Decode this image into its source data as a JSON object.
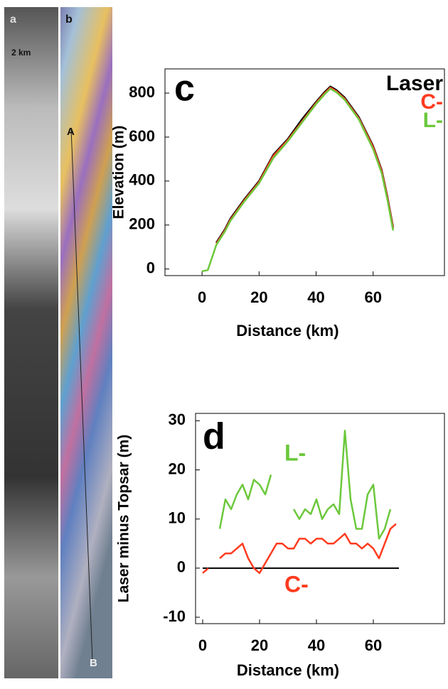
{
  "images": {
    "panel_a": {
      "label": "a",
      "scale": "2 km"
    },
    "panel_b": {
      "label": "b",
      "start": "A",
      "end": "B"
    }
  },
  "chart_data": [
    {
      "type": "line",
      "panel_label": "c",
      "xlabel": "Distance (km)",
      "ylabel": "Elevation (m)",
      "x": [
        0,
        2,
        5,
        8,
        10,
        15,
        20,
        25,
        30,
        35,
        40,
        43,
        45,
        47,
        50,
        55,
        60,
        63,
        65,
        67
      ],
      "series": [
        {
          "name": "Laser",
          "color": "#000000",
          "values": [
            null,
            null,
            120,
            180,
            230,
            320,
            400,
            520,
            590,
            680,
            760,
            805,
            830,
            815,
            780,
            690,
            560,
            450,
            330,
            190
          ]
        },
        {
          "name": "C-",
          "color": "#ff3b1f",
          "values": [
            null,
            null,
            115,
            175,
            225,
            315,
            395,
            515,
            585,
            670,
            755,
            800,
            825,
            810,
            775,
            685,
            555,
            445,
            325,
            185
          ]
        },
        {
          "name": "L-",
          "color": "#6cc83c",
          "values": [
            -10,
            -5,
            110,
            170,
            220,
            310,
            390,
            505,
            580,
            665,
            750,
            795,
            820,
            805,
            770,
            680,
            545,
            435,
            315,
            175
          ]
        }
      ],
      "xlim": [
        -13,
        85
      ],
      "ylim": [
        -30,
        910
      ],
      "xticks": [
        0,
        20,
        40,
        60
      ],
      "yticks": [
        0,
        200,
        400,
        600,
        800
      ]
    },
    {
      "type": "line",
      "panel_label": "d",
      "xlabel": "Distance (km)",
      "ylabel": "Laser minus Topsar (m)",
      "x": [
        0,
        2,
        4,
        6,
        8,
        10,
        12,
        14,
        16,
        18,
        20,
        22,
        24,
        26,
        28,
        30,
        32,
        34,
        36,
        38,
        40,
        42,
        44,
        46,
        48,
        50,
        52,
        54,
        56,
        58,
        60,
        62,
        64,
        66,
        68
      ],
      "series": [
        {
          "name": "L-",
          "color": "#6cc83c",
          "values": [
            null,
            null,
            null,
            8,
            14,
            12,
            15,
            17,
            14,
            18,
            17,
            15,
            19,
            null,
            null,
            null,
            12,
            10,
            12,
            11,
            14,
            10,
            12,
            13,
            11,
            28,
            14,
            8,
            8,
            15,
            17,
            6,
            8,
            12,
            null
          ]
        },
        {
          "name": "C-",
          "color": "#ff3b1f",
          "values": [
            -1,
            0,
            null,
            2,
            3,
            3,
            4,
            5,
            2,
            0,
            -1,
            1,
            3,
            5,
            5,
            4,
            4,
            6,
            6,
            5,
            6,
            6,
            5,
            5,
            6,
            7,
            5,
            5,
            4,
            5,
            4,
            2,
            5,
            8,
            9
          ]
        }
      ],
      "reference_line": {
        "y": 0,
        "x": [
          0,
          69
        ],
        "color": "#000000"
      },
      "xlim": [
        -2.5,
        85
      ],
      "ylim": [
        -11.3,
        31.5
      ],
      "xticks": [
        0,
        20,
        40,
        60
      ],
      "yticks": [
        -10,
        0,
        10,
        20,
        30
      ]
    }
  ]
}
